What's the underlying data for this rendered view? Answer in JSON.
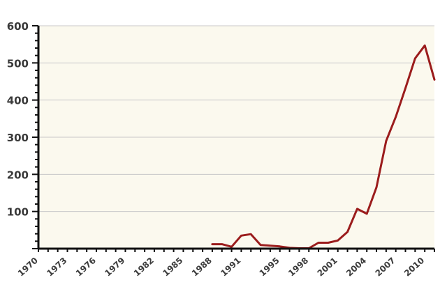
{
  "chart_data": {
    "type": "line",
    "title": "",
    "xlabel": "",
    "ylabel": "",
    "xlim": [
      1970,
      2011
    ],
    "ylim": [
      0,
      600
    ],
    "grid": true,
    "colors": {
      "background": "#fbf9ee",
      "line": "#9b1c1c",
      "grid": "#c8c8c8",
      "axis": "#111111"
    },
    "y_ticks": [
      "100",
      "200",
      "300",
      "400",
      "500",
      "600"
    ],
    "x_ticks": [
      "1970",
      "1973",
      "1976",
      "1979",
      "1982",
      "1985",
      "1988",
      "1991",
      "1995",
      "1998",
      "2001",
      "2004",
      "2007",
      "2010"
    ],
    "x": [
      1970,
      1971,
      1972,
      1973,
      1974,
      1975,
      1976,
      1977,
      1978,
      1979,
      1980,
      1981,
      1982,
      1983,
      1984,
      1985,
      1986,
      1987,
      1988,
      1989,
      1990,
      1991,
      1992,
      1993,
      1994,
      1995,
      1996,
      1997,
      1998,
      1999,
      2000,
      2001,
      2002,
      2003,
      2004,
      2005,
      2006,
      2007,
      2008,
      2009,
      2010,
      2011
    ],
    "values": [
      0,
      0,
      0,
      0,
      0,
      0,
      0,
      0,
      0,
      2,
      0,
      0,
      0,
      0,
      0,
      0,
      0,
      0,
      12,
      12,
      5,
      35,
      39,
      10,
      8,
      6,
      2,
      1,
      1,
      16,
      16,
      22,
      45,
      107,
      94,
      165,
      290,
      355,
      432,
      512,
      547,
      455
    ]
  }
}
